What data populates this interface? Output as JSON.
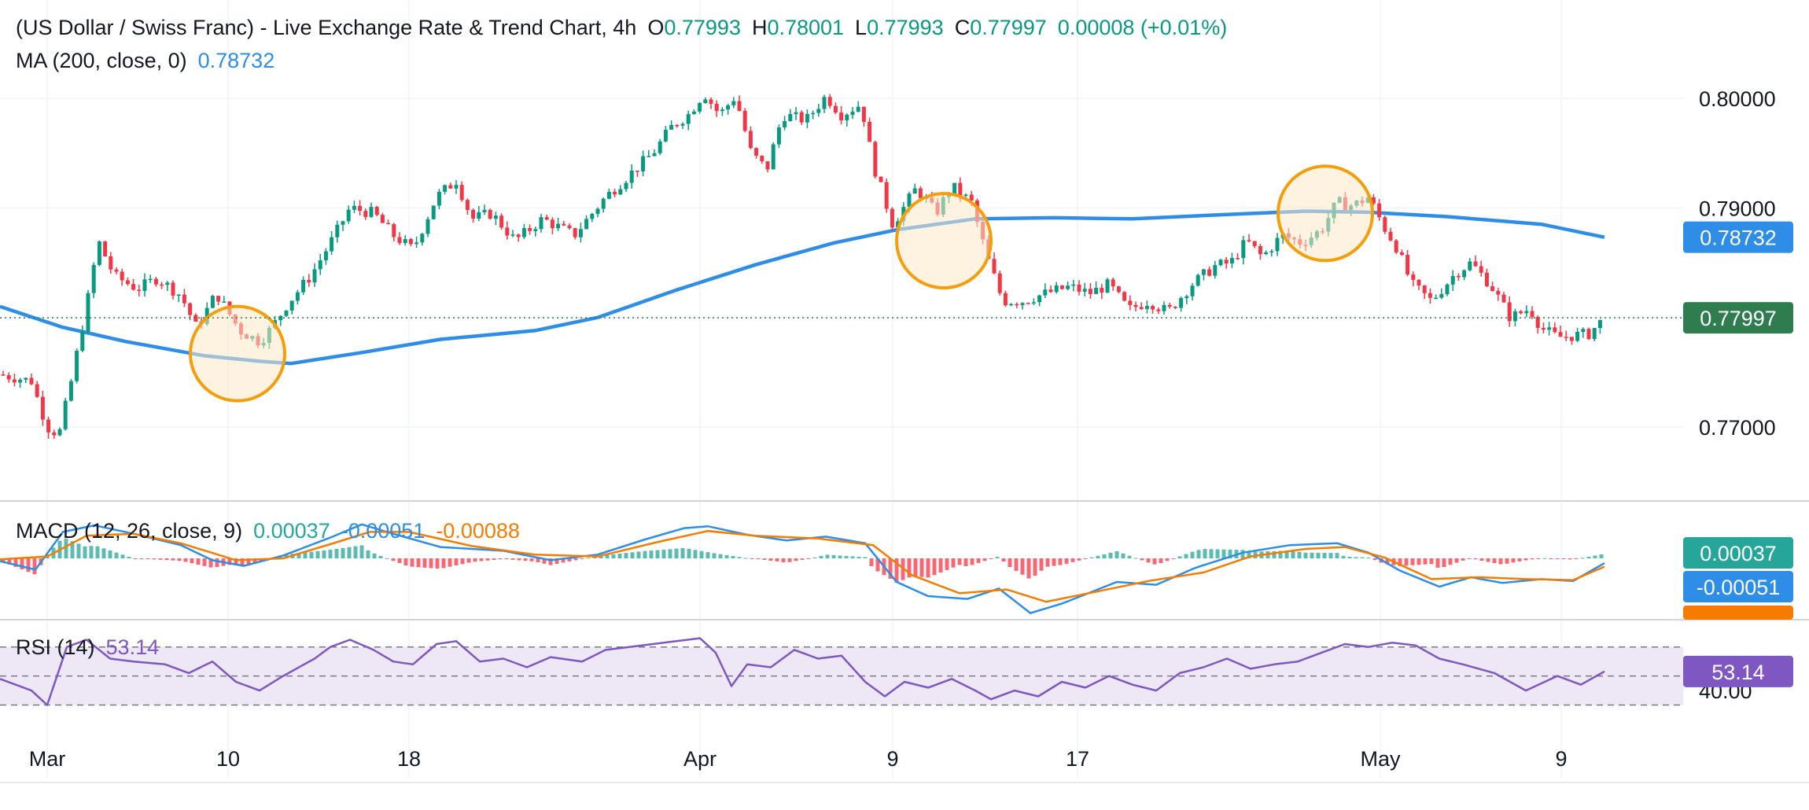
{
  "header": {
    "title": "(US Dollar / Swiss Franc) - Live Exchange Rate & Trend Chart, 4h",
    "o_key": "O",
    "o": "0.77993",
    "h_key": "H",
    "h": "0.78001",
    "l_key": "L",
    "l": "0.77993",
    "c_key": "C",
    "c": "0.77997",
    "change": "0.00008 (+0.01%)"
  },
  "ma_legend": {
    "label": "MA (200, close, 0)",
    "value": "0.78732"
  },
  "macd_legend": {
    "label": "MACD (12, 26, close, 9)",
    "hist": "0.00037",
    "macd": "-0.00051",
    "signal": "-0.00088"
  },
  "rsi_legend": {
    "label": "RSI (14)",
    "value": "53.14"
  },
  "colors": {
    "up": "#089981",
    "down": "#f23645",
    "ma": "#2e8de6",
    "last_price_bg": "#2f7d4f",
    "ma_tag_bg": "#2e8de6",
    "macd_line": "#2e8de6",
    "signal_line": "#f57c00",
    "hist_up": "#26a69a",
    "hist_down": "#f23645",
    "rsi_line": "#7e57c2",
    "rsi_band": "#ede7f6",
    "circle_fill": "#fde9c9",
    "circle_stroke": "#f59e0b"
  },
  "chart_data": [
    {
      "type": "candlestick",
      "title": "(US Dollar / Swiss Franc) - Live Exchange Rate & Trend Chart, 4h",
      "x_tick_labels": [
        "Mar",
        "10",
        "18",
        "Apr",
        "9",
        "17",
        "May",
        "9"
      ],
      "y_tick_labels": [
        "0.80000",
        "0.79000",
        "0.77000"
      ],
      "ylim": [
        0.7665,
        0.8045
      ],
      "last_price": 0.77997,
      "last_price_label": "0.77997",
      "ma200_last_label": "0.78732",
      "ma200_last": 0.78732,
      "ma200": [
        [
          0,
          0.781
        ],
        [
          80,
          0.7791
        ],
        [
          160,
          0.7778
        ],
        [
          260,
          0.7765
        ],
        [
          330,
          0.776
        ],
        [
          370,
          0.7758
        ],
        [
          460,
          0.7768
        ],
        [
          560,
          0.778
        ],
        [
          680,
          0.7788
        ],
        [
          760,
          0.78
        ],
        [
          860,
          0.7825
        ],
        [
          960,
          0.7848
        ],
        [
          1060,
          0.7868
        ],
        [
          1140,
          0.788
        ],
        [
          1240,
          0.789
        ],
        [
          1340,
          0.7891
        ],
        [
          1440,
          0.789
        ],
        [
          1560,
          0.7894
        ],
        [
          1660,
          0.7897
        ],
        [
          1740,
          0.7896
        ],
        [
          1840,
          0.7892
        ],
        [
          1960,
          0.7885
        ],
        [
          2040,
          0.78732
        ]
      ],
      "ohlc_anchors": [
        [
          0,
          0.7748
        ],
        [
          40,
          0.7742
        ],
        [
          60,
          0.77
        ],
        [
          75,
          0.7693
        ],
        [
          90,
          0.774
        ],
        [
          110,
          0.781
        ],
        [
          125,
          0.787
        ],
        [
          145,
          0.7838
        ],
        [
          175,
          0.7826
        ],
        [
          200,
          0.7836
        ],
        [
          230,
          0.782
        ],
        [
          250,
          0.779
        ],
        [
          275,
          0.7822
        ],
        [
          305,
          0.7788
        ],
        [
          330,
          0.7778
        ],
        [
          345,
          0.779
        ],
        [
          365,
          0.7812
        ],
        [
          395,
          0.7838
        ],
        [
          420,
          0.7868
        ],
        [
          445,
          0.79
        ],
        [
          475,
          0.7895
        ],
        [
          500,
          0.7875
        ],
        [
          525,
          0.7862
        ],
        [
          555,
          0.791
        ],
        [
          580,
          0.7925
        ],
        [
          600,
          0.789
        ],
        [
          625,
          0.7895
        ],
        [
          655,
          0.787
        ],
        [
          690,
          0.789
        ],
        [
          730,
          0.7875
        ],
        [
          770,
          0.791
        ],
        [
          800,
          0.793
        ],
        [
          830,
          0.795
        ],
        [
          855,
          0.7975
        ],
        [
          875,
          0.7985
        ],
        [
          895,
          0.8005
        ],
        [
          915,
          0.7985
        ],
        [
          935,
          0.8002
        ],
        [
          955,
          0.795
        ],
        [
          975,
          0.7935
        ],
        [
          995,
          0.7985
        ],
        [
          1025,
          0.798
        ],
        [
          1050,
          0.8002
        ],
        [
          1070,
          0.7985
        ],
        [
          1095,
          0.7995
        ],
        [
          1110,
          0.794
        ],
        [
          1135,
          0.7885
        ],
        [
          1165,
          0.7918
        ],
        [
          1190,
          0.7895
        ],
        [
          1210,
          0.792
        ],
        [
          1235,
          0.7905
        ],
        [
          1255,
          0.7855
        ],
        [
          1275,
          0.7815
        ],
        [
          1300,
          0.7815
        ],
        [
          1330,
          0.7822
        ],
        [
          1360,
          0.7828
        ],
        [
          1385,
          0.7822
        ],
        [
          1410,
          0.783
        ],
        [
          1435,
          0.7807
        ],
        [
          1460,
          0.7815
        ],
        [
          1485,
          0.7805
        ],
        [
          1515,
          0.783
        ],
        [
          1545,
          0.7847
        ],
        [
          1565,
          0.785
        ],
        [
          1585,
          0.787
        ],
        [
          1605,
          0.7855
        ],
        [
          1630,
          0.7875
        ],
        [
          1655,
          0.7868
        ],
        [
          1680,
          0.788
        ],
        [
          1700,
          0.7905
        ],
        [
          1720,
          0.7902
        ],
        [
          1740,
          0.791
        ],
        [
          1760,
          0.7882
        ],
        [
          1775,
          0.7865
        ],
        [
          1795,
          0.783
        ],
        [
          1820,
          0.7815
        ],
        [
          1850,
          0.784
        ],
        [
          1870,
          0.785
        ],
        [
          1895,
          0.783
        ],
        [
          1920,
          0.78
        ],
        [
          1945,
          0.7808
        ],
        [
          1960,
          0.779
        ],
        [
          1980,
          0.7782
        ],
        [
          1995,
          0.7783
        ],
        [
          2020,
          0.7785
        ],
        [
          2040,
          0.77997
        ]
      ]
    },
    {
      "type": "line",
      "title": "MACD (12, 26, close, 9)",
      "x_tick_labels": [
        "Mar",
        "10",
        "18",
        "Apr",
        "9",
        "17",
        "May",
        "9"
      ],
      "last_values": {
        "histogram": 0.00037,
        "macd": -0.00051,
        "signal": -0.00088
      },
      "series": [
        {
          "name": "macd",
          "values": [
            [
              0,
              -0.3
            ],
            [
              45,
              -1.2
            ],
            [
              80,
              2.8
            ],
            [
              120,
              3.5
            ],
            [
              170,
              2.6
            ],
            [
              230,
              1.4
            ],
            [
              270,
              -0.2
            ],
            [
              310,
              -0.8
            ],
            [
              360,
              0.3
            ],
            [
              420,
              2.2
            ],
            [
              460,
              3.6
            ],
            [
              500,
              2.6
            ],
            [
              560,
              1.2
            ],
            [
              640,
              0.8
            ],
            [
              700,
              -0.2
            ],
            [
              760,
              0.4
            ],
            [
              820,
              2.0
            ],
            [
              870,
              3.2
            ],
            [
              900,
              3.4
            ],
            [
              950,
              2.5
            ],
            [
              1000,
              1.9
            ],
            [
              1050,
              2.3
            ],
            [
              1100,
              1.6
            ],
            [
              1140,
              -2.5
            ],
            [
              1180,
              -4.0
            ],
            [
              1230,
              -4.3
            ],
            [
              1270,
              -3.2
            ],
            [
              1310,
              -5.8
            ],
            [
              1350,
              -4.8
            ],
            [
              1420,
              -2.5
            ],
            [
              1470,
              -2.8
            ],
            [
              1520,
              -1.0
            ],
            [
              1580,
              0.6
            ],
            [
              1640,
              1.4
            ],
            [
              1700,
              1.6
            ],
            [
              1740,
              0.6
            ],
            [
              1780,
              -1.3
            ],
            [
              1830,
              -3.0
            ],
            [
              1870,
              -2.0
            ],
            [
              1910,
              -2.6
            ],
            [
              1960,
              -2.2
            ],
            [
              2000,
              -2.4
            ],
            [
              2040,
              -0.51
            ]
          ]
        },
        {
          "name": "signal",
          "values": [
            [
              0,
              -0.1
            ],
            [
              60,
              0.2
            ],
            [
              110,
              2.4
            ],
            [
              170,
              2.6
            ],
            [
              230,
              1.6
            ],
            [
              300,
              -0.2
            ],
            [
              360,
              0.0
            ],
            [
              420,
              1.5
            ],
            [
              470,
              2.8
            ],
            [
              520,
              2.8
            ],
            [
              600,
              1.3
            ],
            [
              680,
              0.4
            ],
            [
              760,
              0.2
            ],
            [
              840,
              1.8
            ],
            [
              900,
              2.9
            ],
            [
              960,
              2.4
            ],
            [
              1040,
              2.1
            ],
            [
              1110,
              1.4
            ],
            [
              1160,
              -1.8
            ],
            [
              1220,
              -3.7
            ],
            [
              1280,
              -3.3
            ],
            [
              1330,
              -4.6
            ],
            [
              1390,
              -3.6
            ],
            [
              1460,
              -2.4
            ],
            [
              1530,
              -1.5
            ],
            [
              1590,
              0.2
            ],
            [
              1660,
              1.0
            ],
            [
              1710,
              1.2
            ],
            [
              1760,
              0.1
            ],
            [
              1820,
              -2.2
            ],
            [
              1880,
              -2.0
            ],
            [
              1940,
              -2.2
            ],
            [
              2000,
              -2.3
            ],
            [
              2040,
              -0.88
            ]
          ]
        }
      ]
    },
    {
      "type": "line",
      "title": "RSI (14)",
      "x_tick_labels": [
        "Mar",
        "10",
        "18",
        "Apr",
        "9",
        "17",
        "May",
        "9"
      ],
      "y_tick_labels": [
        "40.00"
      ],
      "ylim": [
        20,
        85
      ],
      "last_value": 53.14,
      "series": [
        {
          "name": "RSI (14)",
          "values": [
            [
              0,
              48
            ],
            [
              40,
              40
            ],
            [
              60,
              30
            ],
            [
              85,
              70
            ],
            [
              110,
              75
            ],
            [
              140,
              62
            ],
            [
              170,
              60
            ],
            [
              210,
              58
            ],
            [
              240,
              52
            ],
            [
              270,
              60
            ],
            [
              300,
              46
            ],
            [
              330,
              40
            ],
            [
              360,
              50
            ],
            [
              400,
              62
            ],
            [
              420,
              70
            ],
            [
              445,
              75
            ],
            [
              475,
              68
            ],
            [
              500,
              60
            ],
            [
              525,
              58
            ],
            [
              555,
              72
            ],
            [
              580,
              74
            ],
            [
              610,
              60
            ],
            [
              640,
              62
            ],
            [
              670,
              56
            ],
            [
              700,
              63
            ],
            [
              740,
              60
            ],
            [
              770,
              68
            ],
            [
              800,
              70
            ],
            [
              830,
              72
            ],
            [
              860,
              74
            ],
            [
              890,
              76
            ],
            [
              910,
              66
            ],
            [
              930,
              43
            ],
            [
              950,
              58
            ],
            [
              980,
              56
            ],
            [
              1010,
              68
            ],
            [
              1040,
              62
            ],
            [
              1070,
              64
            ],
            [
              1100,
              46
            ],
            [
              1125,
              36
            ],
            [
              1150,
              46
            ],
            [
              1180,
              42
            ],
            [
              1210,
              48
            ],
            [
              1240,
              40
            ],
            [
              1260,
              34
            ],
            [
              1290,
              40
            ],
            [
              1320,
              36
            ],
            [
              1350,
              46
            ],
            [
              1380,
              42
            ],
            [
              1410,
              50
            ],
            [
              1440,
              44
            ],
            [
              1470,
              40
            ],
            [
              1500,
              52
            ],
            [
              1530,
              56
            ],
            [
              1560,
              62
            ],
            [
              1590,
              55
            ],
            [
              1620,
              58
            ],
            [
              1650,
              60
            ],
            [
              1680,
              66
            ],
            [
              1710,
              72
            ],
            [
              1740,
              70
            ],
            [
              1770,
              73
            ],
            [
              1800,
              71
            ],
            [
              1830,
              62
            ],
            [
              1860,
              58
            ],
            [
              1900,
              52
            ],
            [
              1940,
              40
            ],
            [
              1980,
              50
            ],
            [
              2010,
              44
            ],
            [
              2040,
              53.14
            ]
          ]
        }
      ]
    }
  ]
}
